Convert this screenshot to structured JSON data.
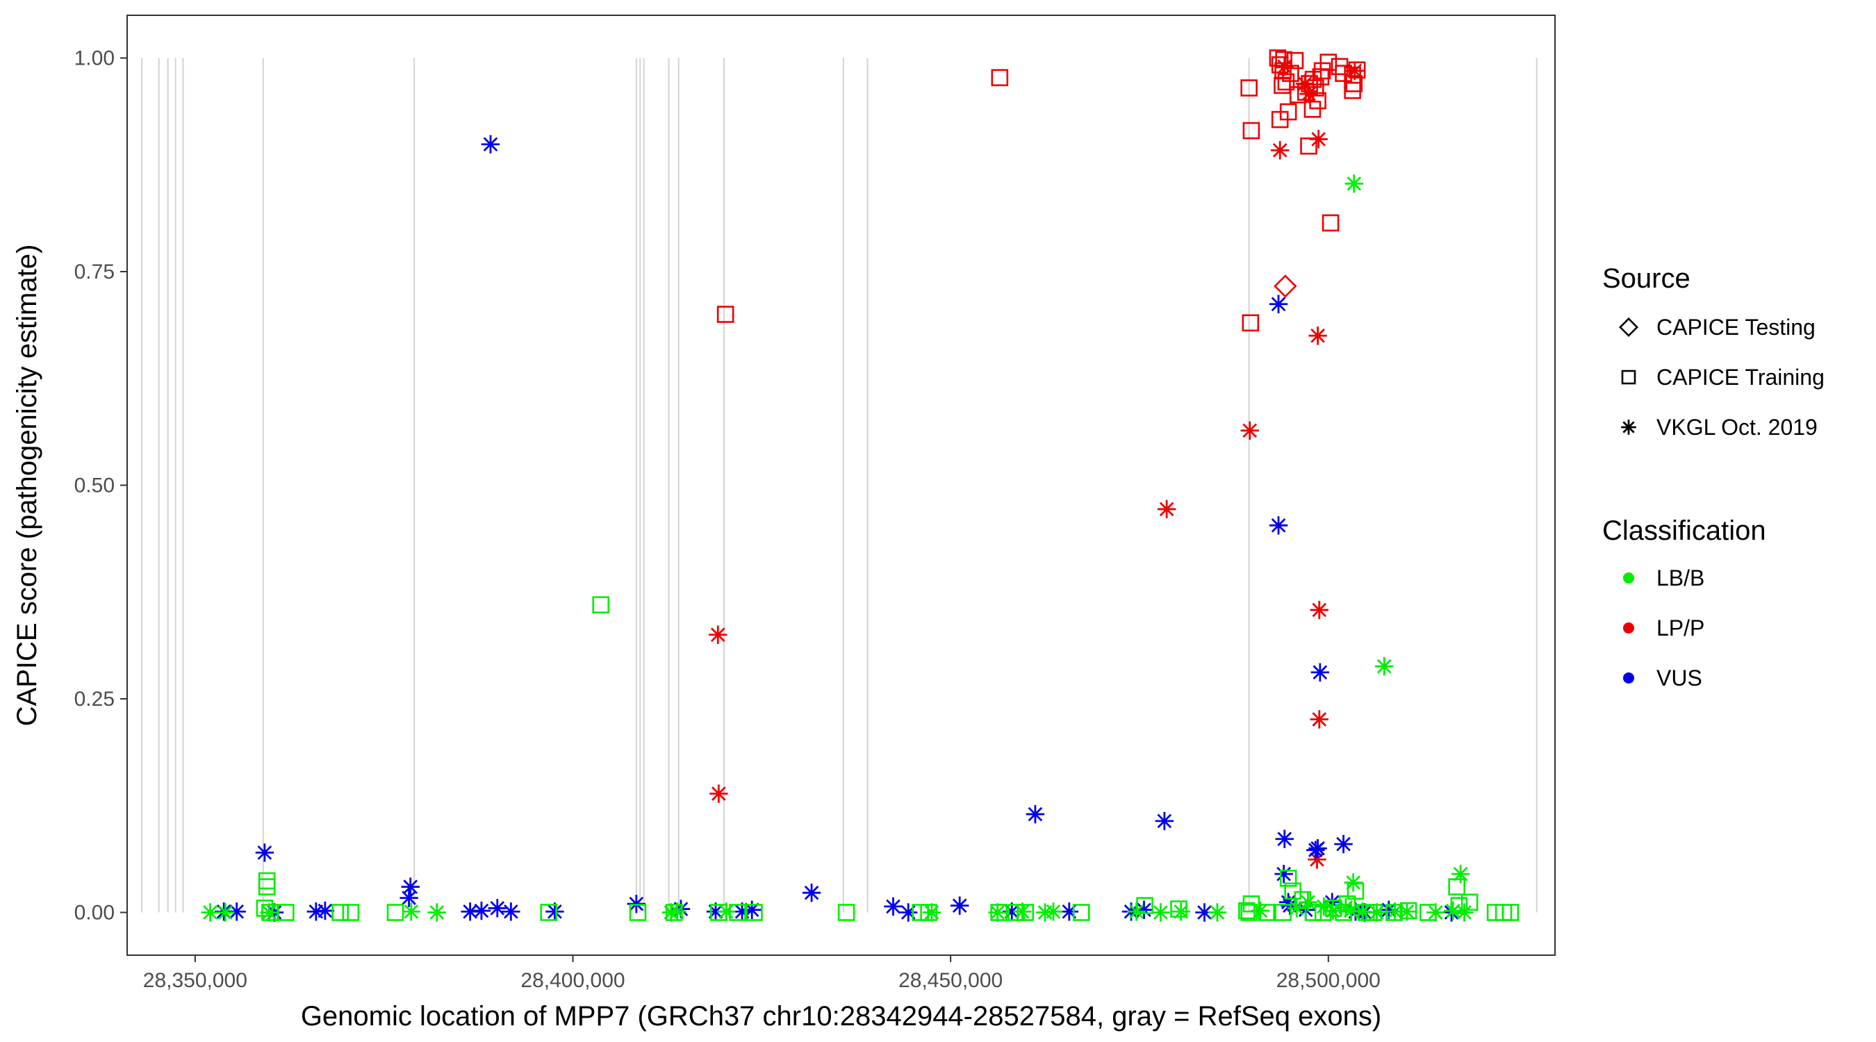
{
  "chart_data": {
    "type": "scatter",
    "xlabel": "Genomic location of MPP7 (GRCh37 chr10:28342944-28527584, gray = RefSeq exons)",
    "ylabel": "CAPICE score (pathogenicity estimate)",
    "xlim": [
      28341000,
      28530000
    ],
    "ylim": [
      -0.05,
      1.05
    ],
    "grid": false,
    "x_ticks": [
      28350000,
      28400000,
      28450000,
      28500000
    ],
    "x_tick_labels": [
      "28,350,000",
      "28,400,000",
      "28,450,000",
      "28,500,000"
    ],
    "y_ticks": [
      0,
      0.25,
      0.5,
      0.75,
      1.0
    ],
    "y_tick_labels": [
      "0.00",
      "0.25",
      "0.50",
      "0.75",
      "1.00"
    ],
    "exon_lines": [
      28342944,
      28345200,
      28346400,
      28347400,
      28348400,
      28359000,
      28379000,
      28408400,
      28408900,
      28409400,
      28412700,
      28414000,
      28420000,
      28435800,
      28439000,
      28489500,
      28527584
    ],
    "colors": {
      "LB/B": "#00ee00",
      "LP/P": "#ee0000",
      "VUS": "#0000ee",
      "exon": "#d3d3d3"
    },
    "legend": {
      "position": "right",
      "source_title": "Source",
      "source_items": [
        {
          "label": "CAPICE Testing",
          "shape": "diamond"
        },
        {
          "label": "CAPICE Training",
          "shape": "square"
        },
        {
          "label": "VKGL Oct. 2019",
          "shape": "asterisk"
        }
      ],
      "class_title": "Classification",
      "class_items": [
        {
          "label": "LB/B",
          "color": "#00ee00"
        },
        {
          "label": "LP/P",
          "color": "#ee0000"
        },
        {
          "label": "VUS",
          "color": "#0000ee"
        }
      ]
    },
    "series": [
      {
        "name": "LP/P",
        "source": "CAPICE Training",
        "points": [
          [
            28493300,
            1.0
          ],
          [
            28494100,
            0.998
          ],
          [
            28495600,
            0.997
          ],
          [
            28493600,
            0.992
          ],
          [
            28494000,
            0.985
          ],
          [
            28497000,
            0.96
          ],
          [
            28496000,
            0.957
          ],
          [
            28498000,
            0.975
          ],
          [
            28499000,
            0.978
          ],
          [
            28500000,
            0.995
          ],
          [
            28501500,
            0.99
          ],
          [
            28502000,
            0.982
          ],
          [
            28503200,
            0.98
          ],
          [
            28503800,
            0.986
          ],
          [
            28503400,
            0.97
          ],
          [
            28503200,
            0.962
          ],
          [
            28499200,
            0.985
          ],
          [
            28498300,
            0.965
          ],
          [
            28497500,
            0.97
          ],
          [
            28498600,
            0.95
          ],
          [
            28495000,
            0.982
          ],
          [
            28494400,
            0.972
          ],
          [
            28493900,
            0.968
          ],
          [
            28489500,
            0.965
          ],
          [
            28489800,
            0.915
          ],
          [
            28493600,
            0.928
          ],
          [
            28494700,
            0.937
          ],
          [
            28497900,
            0.94
          ],
          [
            28497400,
            0.897
          ],
          [
            28500300,
            0.807
          ],
          [
            28456500,
            0.977
          ],
          [
            28420200,
            0.7
          ],
          [
            28489700,
            0.69
          ]
        ]
      },
      {
        "name": "LP/P",
        "source": "CAPICE Testing",
        "points": [
          [
            28494300,
            0.733
          ]
        ]
      },
      {
        "name": "LP/P",
        "source": "VKGL Oct. 2019",
        "points": [
          [
            28493600,
            0.892
          ],
          [
            28498700,
            0.905
          ],
          [
            28498600,
            0.675
          ],
          [
            28489600,
            0.564
          ],
          [
            28478600,
            0.472
          ],
          [
            28419200,
            0.325
          ],
          [
            28498800,
            0.354
          ],
          [
            28498800,
            0.226
          ],
          [
            28419300,
            0.139
          ],
          [
            28498500,
            0.062
          ],
          [
            28503500,
            0.985
          ],
          [
            28496900,
            0.97
          ],
          [
            28494200,
            0.99
          ],
          [
            28497400,
            0.958
          ]
        ]
      },
      {
        "name": "VUS",
        "source": "VKGL Oct. 2019",
        "points": [
          [
            28389100,
            0.899
          ],
          [
            28493400,
            0.712
          ],
          [
            28493400,
            0.453
          ],
          [
            28498900,
            0.281
          ],
          [
            28461200,
            0.115
          ],
          [
            28478300,
            0.107
          ],
          [
            28494200,
            0.086
          ],
          [
            28498600,
            0.075
          ],
          [
            28502000,
            0.08
          ],
          [
            28498300,
            0.073
          ],
          [
            28359200,
            0.07
          ],
          [
            28494100,
            0.045
          ],
          [
            28378500,
            0.03
          ],
          [
            28378300,
            0.017
          ],
          [
            28431600,
            0.023
          ],
          [
            28408400,
            0.01
          ],
          [
            28390000,
            0.005
          ],
          [
            28494700,
            0.012
          ],
          [
            28494900,
            0.008
          ],
          [
            28497000,
            0.003
          ],
          [
            28500500,
            0.012
          ],
          [
            28503600,
            0.001
          ],
          [
            28442400,
            0.007
          ],
          [
            28451200,
            0.008
          ],
          [
            28355500,
            0.001
          ],
          [
            28360500,
            0.0
          ],
          [
            28366000,
            0.001
          ],
          [
            28367200,
            0.002
          ],
          [
            28386400,
            0.001
          ],
          [
            28387900,
            0.002
          ],
          [
            28391800,
            0.001
          ],
          [
            28397600,
            0.001
          ],
          [
            28414300,
            0.004
          ],
          [
            28418900,
            0.001
          ],
          [
            28422400,
            0.001
          ],
          [
            28423700,
            0.003
          ],
          [
            28444400,
            0.0
          ],
          [
            28458100,
            0.001
          ],
          [
            28465700,
            0.001
          ],
          [
            28473900,
            0.001
          ],
          [
            28475600,
            0.003
          ],
          [
            28483600,
            0.0
          ],
          [
            28504800,
            0.0
          ],
          [
            28508000,
            0.003
          ],
          [
            28516300,
            0.0
          ],
          [
            28353800,
            0.001
          ]
        ]
      },
      {
        "name": "LB/B",
        "source": "VKGL Oct. 2019",
        "points": [
          [
            28503400,
            0.853
          ],
          [
            28507400,
            0.288
          ],
          [
            28517500,
            0.045
          ],
          [
            28503300,
            0.035
          ],
          [
            28352000,
            0.0
          ],
          [
            28354000,
            0.0
          ],
          [
            28359800,
            0.0
          ],
          [
            28378600,
            0.001
          ],
          [
            28382000,
            0.0
          ],
          [
            28413000,
            0.0
          ],
          [
            28413800,
            0.001
          ],
          [
            28420300,
            0.001
          ],
          [
            28447500,
            0.0
          ],
          [
            28456200,
            0.0
          ],
          [
            28459500,
            0.001
          ],
          [
            28462500,
            0.0
          ],
          [
            28463600,
            0.001
          ],
          [
            28474600,
            0.001
          ],
          [
            28477800,
            0.0
          ],
          [
            28480500,
            0.001
          ],
          [
            28485300,
            0.0
          ],
          [
            28491000,
            0.002
          ],
          [
            28495800,
            0.005
          ],
          [
            28497300,
            0.012
          ],
          [
            28499400,
            0.007
          ],
          [
            28500600,
            0.002
          ],
          [
            28502300,
            0.006
          ],
          [
            28503000,
            0.002
          ],
          [
            28504500,
            0.001
          ],
          [
            28506400,
            0.0
          ],
          [
            28508800,
            0.001
          ],
          [
            28510400,
            0.001
          ],
          [
            28514200,
            0.0
          ],
          [
            28516500,
            0.002
          ],
          [
            28518000,
            0.0
          ]
        ]
      },
      {
        "name": "LB/B",
        "source": "CAPICE Training",
        "points": [
          [
            28403700,
            0.36
          ],
          [
            28359500,
            0.037
          ],
          [
            28359500,
            0.03
          ],
          [
            28359200,
            0.005
          ],
          [
            28359900,
            0.0
          ],
          [
            28362000,
            0.0
          ],
          [
            28369200,
            0.0
          ],
          [
            28370600,
            0.0
          ],
          [
            28376500,
            0.0
          ],
          [
            28396800,
            0.0
          ],
          [
            28408600,
            0.0
          ],
          [
            28413400,
            0.0
          ],
          [
            28419300,
            0.0
          ],
          [
            28421800,
            0.0
          ],
          [
            28424000,
            0.0
          ],
          [
            28436200,
            0.0
          ],
          [
            28446000,
            0.0
          ],
          [
            28447100,
            0.0
          ],
          [
            28456400,
            0.0
          ],
          [
            28458700,
            0.0
          ],
          [
            28459900,
            0.0
          ],
          [
            28467300,
            0.0
          ],
          [
            28475700,
            0.008
          ],
          [
            28480200,
            0.004
          ],
          [
            28489500,
            0.0
          ],
          [
            28489800,
            0.01
          ],
          [
            28491800,
            0.0
          ],
          [
            28494700,
            0.04
          ],
          [
            28495300,
            0.025
          ],
          [
            28496600,
            0.015
          ],
          [
            28499300,
            0.0
          ],
          [
            28500700,
            0.005
          ],
          [
            28502500,
            0.01
          ],
          [
            28503600,
            0.025
          ],
          [
            28505000,
            0.0
          ],
          [
            28508700,
            0.0
          ],
          [
            28510600,
            0.002
          ],
          [
            28513200,
            0.0
          ],
          [
            28517000,
            0.03
          ],
          [
            28517300,
            0.008
          ],
          [
            28518700,
            0.012
          ],
          [
            28522100,
            0.0
          ],
          [
            28523200,
            0.0
          ],
          [
            28524100,
            0.0
          ],
          [
            28489200,
            0.002
          ],
          [
            28494000,
            0.0
          ],
          [
            28498000,
            0.0
          ],
          [
            28502000,
            0.0
          ],
          [
            28506000,
            0.0
          ]
        ]
      }
    ]
  }
}
